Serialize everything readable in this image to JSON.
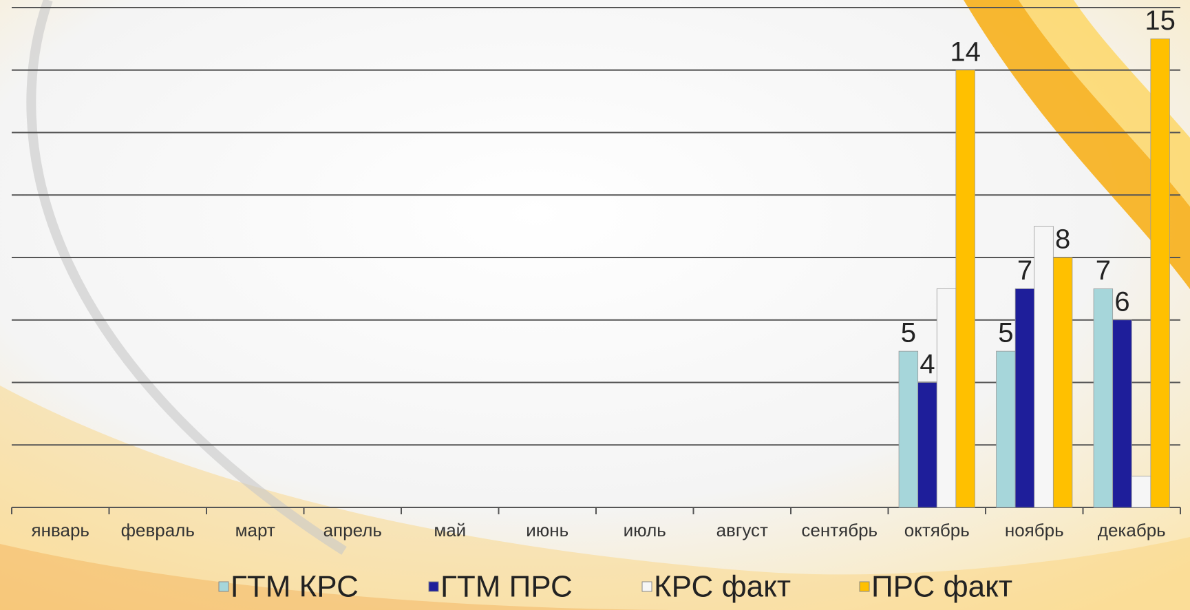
{
  "chart_data": {
    "type": "bar",
    "categories": [
      "январь",
      "февраль",
      "март",
      "апрель",
      "май",
      "июнь",
      "июль",
      "август",
      "сентябрь",
      "октябрь",
      "ноябрь",
      "декабрь"
    ],
    "series": [
      {
        "name": "ГТМ КРС",
        "color": "#a6d6da",
        "data_labels": true,
        "values": [
          null,
          null,
          null,
          null,
          null,
          null,
          null,
          null,
          null,
          5,
          5,
          7
        ]
      },
      {
        "name": "ГТМ ПРС",
        "color": "#1e1e9a",
        "data_labels": true,
        "values": [
          null,
          null,
          null,
          null,
          null,
          null,
          null,
          null,
          null,
          4,
          7,
          6
        ]
      },
      {
        "name": "КРС факт",
        "color": "#f6f6f6",
        "data_labels": false,
        "values": [
          null,
          null,
          null,
          null,
          null,
          null,
          null,
          null,
          null,
          7,
          9,
          1
        ]
      },
      {
        "name": "ПРС факт",
        "color": "#ffc000",
        "data_labels": true,
        "values": [
          null,
          null,
          null,
          null,
          null,
          null,
          null,
          null,
          null,
          14,
          8,
          15
        ]
      }
    ],
    "ylim": [
      0,
      16
    ],
    "yticks": [
      0,
      2,
      4,
      6,
      8,
      10,
      12,
      14,
      16
    ],
    "grid": true,
    "legend": "bottom"
  }
}
